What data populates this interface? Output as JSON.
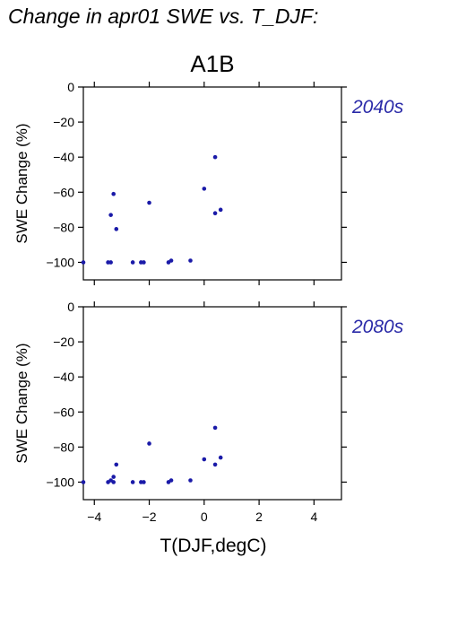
{
  "figure": {
    "title": "Change in apr01 SWE vs. T_DJF:",
    "scenario": "A1B"
  },
  "colors": {
    "point": "#1a1aa8",
    "period_label": "#2a2aa8",
    "axis": "#000000"
  },
  "chart_data": [
    {
      "type": "scatter",
      "period": "2040s",
      "ylabel": "SWE Change (%)",
      "xlabel": "",
      "xlim": [
        -4.4,
        5.0
      ],
      "ylim": [
        -110,
        0
      ],
      "xticks": [
        -4,
        -2,
        0,
        2,
        4
      ],
      "yticks": [
        0,
        -20,
        -40,
        -60,
        -80,
        -100
      ],
      "xtick_labels_visible": false,
      "points": [
        {
          "x": -4.4,
          "y": -100
        },
        {
          "x": -3.5,
          "y": -100
        },
        {
          "x": -3.4,
          "y": -100
        },
        {
          "x": -3.4,
          "y": -73
        },
        {
          "x": -3.3,
          "y": -61
        },
        {
          "x": -3.2,
          "y": -81
        },
        {
          "x": -2.6,
          "y": -100
        },
        {
          "x": -2.3,
          "y": -100
        },
        {
          "x": -2.2,
          "y": -100
        },
        {
          "x": -2.0,
          "y": -66
        },
        {
          "x": -1.3,
          "y": -100
        },
        {
          "x": -1.2,
          "y": -99
        },
        {
          "x": -0.5,
          "y": -99
        },
        {
          "x": 0.0,
          "y": -58
        },
        {
          "x": 0.4,
          "y": -72
        },
        {
          "x": 0.4,
          "y": -40
        },
        {
          "x": 0.6,
          "y": -70
        }
      ]
    },
    {
      "type": "scatter",
      "period": "2080s",
      "ylabel": "SWE Change (%)",
      "xlabel": "T(DJF,degC)",
      "xlim": [
        -4.4,
        5.0
      ],
      "ylim": [
        -110,
        0
      ],
      "xticks": [
        -4,
        -2,
        0,
        2,
        4
      ],
      "yticks": [
        0,
        -20,
        -40,
        -60,
        -80,
        -100
      ],
      "xtick_labels_visible": true,
      "points": [
        {
          "x": -4.4,
          "y": -100
        },
        {
          "x": -3.5,
          "y": -100
        },
        {
          "x": -3.4,
          "y": -99
        },
        {
          "x": -3.3,
          "y": -100
        },
        {
          "x": -3.3,
          "y": -97
        },
        {
          "x": -3.2,
          "y": -90
        },
        {
          "x": -2.6,
          "y": -100
        },
        {
          "x": -2.3,
          "y": -100
        },
        {
          "x": -2.2,
          "y": -100
        },
        {
          "x": -2.0,
          "y": -78
        },
        {
          "x": -1.3,
          "y": -100
        },
        {
          "x": -1.2,
          "y": -99
        },
        {
          "x": -0.5,
          "y": -99
        },
        {
          "x": 0.0,
          "y": -87
        },
        {
          "x": 0.4,
          "y": -90
        },
        {
          "x": 0.4,
          "y": -69
        },
        {
          "x": 0.6,
          "y": -86
        }
      ]
    }
  ]
}
